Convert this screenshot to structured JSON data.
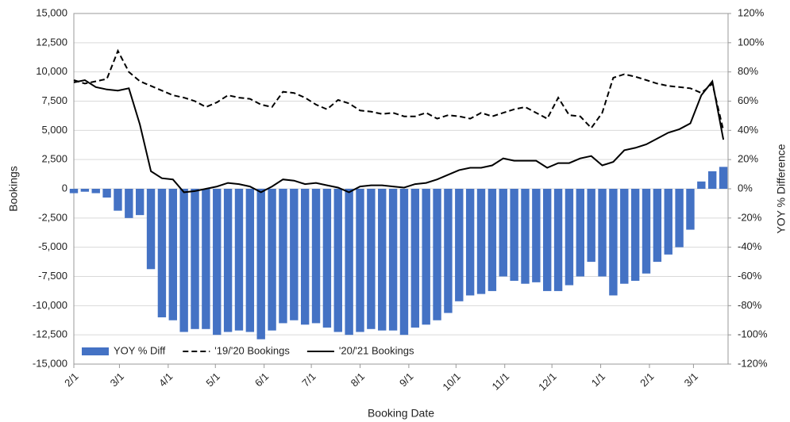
{
  "chart_data": {
    "type": "combo",
    "x_label": "Booking Date",
    "y_label": "Bookings",
    "y2_label": "YOY % Difference",
    "grid": true,
    "xlim": [
      0,
      416
    ],
    "xticks": [
      {
        "value": 0,
        "label": "2/1"
      },
      {
        "value": 29,
        "label": "3/1"
      },
      {
        "value": 60,
        "label": "4/1"
      },
      {
        "value": 90,
        "label": "5/1"
      },
      {
        "value": 121,
        "label": "6/1"
      },
      {
        "value": 151,
        "label": "7/1"
      },
      {
        "value": 182,
        "label": "8/1"
      },
      {
        "value": 213,
        "label": "9/1"
      },
      {
        "value": 243,
        "label": "10/1"
      },
      {
        "value": 274,
        "label": "11/1"
      },
      {
        "value": 304,
        "label": "12/1"
      },
      {
        "value": 335,
        "label": "1/1"
      },
      {
        "value": 366,
        "label": "2/1"
      },
      {
        "value": 394,
        "label": "3/1"
      }
    ],
    "ylim": [
      -15000,
      15000
    ],
    "yticks": [
      {
        "value": -15000,
        "label": "-15,000"
      },
      {
        "value": -12500,
        "label": "-12,500"
      },
      {
        "value": -10000,
        "label": "-10,000"
      },
      {
        "value": -7500,
        "label": "-7,500"
      },
      {
        "value": -5000,
        "label": "-5,000"
      },
      {
        "value": -2500,
        "label": "-2,500"
      },
      0,
      {
        "value": 2500,
        "label": "2,500"
      },
      {
        "value": 5000,
        "label": "5,000"
      },
      {
        "value": 7500,
        "label": "7,500"
      },
      {
        "value": 10000,
        "label": "10,000"
      },
      {
        "value": 12500,
        "label": "12,500"
      },
      {
        "value": 15000,
        "label": "15,000"
      }
    ],
    "y2lim": [
      -120,
      120
    ],
    "y2ticks": [
      {
        "value": -120,
        "label": "-120%"
      },
      {
        "value": -100,
        "label": "-100%"
      },
      {
        "value": -80,
        "label": "-80%"
      },
      {
        "value": -60,
        "label": "-60%"
      },
      {
        "value": -40,
        "label": "-40%"
      },
      {
        "value": -20,
        "label": "-20%"
      },
      {
        "value": 0,
        "label": "0%"
      },
      {
        "value": 20,
        "label": "20%"
      },
      {
        "value": 40,
        "label": "40%"
      },
      {
        "value": 60,
        "label": "60%"
      },
      {
        "value": 80,
        "label": "80%"
      },
      {
        "value": 100,
        "label": "100%"
      },
      {
        "value": 120,
        "label": "120%"
      }
    ],
    "x": [
      0,
      7,
      14,
      21,
      28,
      35,
      42,
      49,
      56,
      63,
      70,
      77,
      84,
      91,
      98,
      105,
      112,
      119,
      126,
      133,
      140,
      147,
      154,
      161,
      168,
      175,
      182,
      189,
      196,
      203,
      210,
      217,
      224,
      231,
      238,
      245,
      252,
      259,
      266,
      273,
      280,
      287,
      294,
      301,
      308,
      315,
      322,
      329,
      336,
      343,
      350,
      357,
      364,
      371,
      378,
      385,
      392,
      399,
      406,
      413
    ],
    "series": [
      {
        "name": "YOY % Diff",
        "type": "bar",
        "axis": "y2",
        "color": "#4472c4",
        "values": [
          -3,
          -2,
          -3,
          -6,
          -15,
          -20,
          -18,
          -55,
          -88,
          -90,
          -98,
          -96,
          -96,
          -100,
          -98,
          -97,
          -98,
          -103,
          -97,
          -92,
          -90,
          -93,
          -92,
          -95,
          -98,
          -100,
          -98,
          -96,
          -97,
          -97,
          -100,
          -95,
          -93,
          -90,
          -85,
          -77,
          -73,
          -72,
          -70,
          -60,
          -63,
          -65,
          -64,
          -70,
          -70,
          -66,
          -60,
          -50,
          -60,
          -73,
          -65,
          -63,
          -58,
          -50,
          -45,
          -40,
          -28,
          5,
          12,
          15
        ]
      },
      {
        "name": "'19/'20 Bookings",
        "type": "line",
        "line_style": "dashed",
        "color": "#000000",
        "values": [
          9300,
          9000,
          9200,
          9400,
          11800,
          10000,
          9200,
          8800,
          8400,
          8000,
          7800,
          7500,
          7000,
          7400,
          8000,
          7800,
          7700,
          7200,
          7000,
          8300,
          8200,
          7800,
          7200,
          6800,
          7600,
          7300,
          6700,
          6600,
          6400,
          6500,
          6200,
          6200,
          6500,
          6000,
          6300,
          6200,
          6000,
          6500,
          6200,
          6500,
          6800,
          7000,
          6500,
          6000,
          7800,
          6300,
          6200,
          5200,
          6500,
          9500,
          9800,
          9600,
          9300,
          9000,
          8800,
          8700,
          8600,
          8200,
          9000,
          5000
        ]
      },
      {
        "name": "'20/'21 Bookings",
        "type": "line",
        "line_style": "solid",
        "color": "#000000",
        "values": [
          9100,
          9300,
          8700,
          8500,
          8400,
          8600,
          5500,
          1500,
          900,
          800,
          -300,
          -200,
          0,
          200,
          500,
          400,
          200,
          -300,
          200,
          800,
          700,
          400,
          500,
          300,
          100,
          -300,
          200,
          300,
          300,
          200,
          100,
          400,
          500,
          800,
          1200,
          1600,
          1800,
          1800,
          2000,
          2600,
          2400,
          2400,
          2400,
          1800,
          2200,
          2200,
          2600,
          2800,
          2000,
          2300,
          3300,
          3500,
          3800,
          4300,
          4800,
          5100,
          5600,
          8000,
          9200,
          4200
        ]
      }
    ]
  }
}
